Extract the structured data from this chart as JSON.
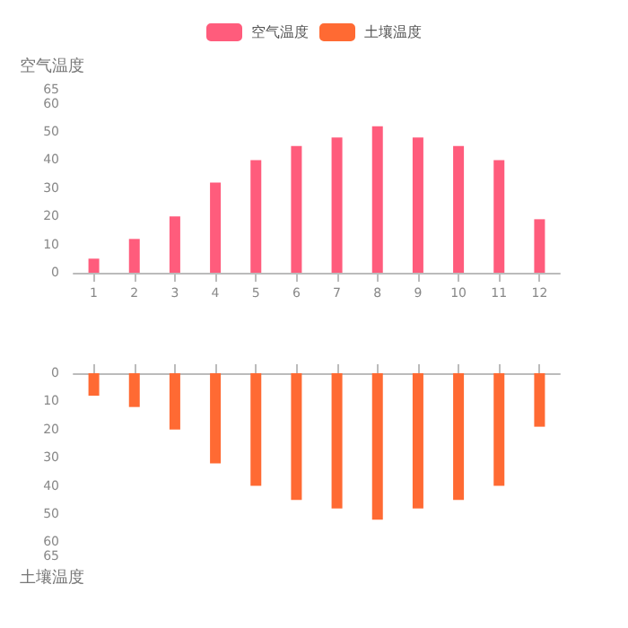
{
  "chart_data": [
    {
      "type": "bar",
      "ylabel": "空气温度",
      "x": [
        1,
        2,
        3,
        4,
        5,
        6,
        7,
        8,
        9,
        10,
        11,
        12
      ],
      "series": [
        {
          "name": "空气温度",
          "color": "#ff5c7c",
          "values": [
            5,
            12,
            20,
            32,
            40,
            45,
            48,
            52,
            48,
            45,
            40,
            19
          ]
        }
      ],
      "xlim": [
        0.5,
        12.5
      ],
      "xticks": [
        1,
        2,
        3,
        4,
        5,
        6,
        7,
        8,
        9,
        10,
        11,
        12
      ],
      "ylim": [
        0,
        65
      ],
      "yticks": [
        0,
        10,
        20,
        30,
        40,
        50,
        60,
        65
      ],
      "grid": false,
      "legend": "top"
    },
    {
      "type": "bar",
      "ylabel": "土壤温度",
      "x": [
        1,
        2,
        3,
        4,
        5,
        6,
        7,
        8,
        9,
        10,
        11,
        12
      ],
      "series": [
        {
          "name": "土壤温度",
          "color": "#ff6a33",
          "values": [
            8,
            12,
            20,
            32,
            40,
            45,
            48,
            52,
            48,
            45,
            40,
            19
          ]
        }
      ],
      "xlim": [
        0.5,
        12.5
      ],
      "xticks": [
        1,
        2,
        3,
        4,
        5,
        6,
        7,
        8,
        9,
        10,
        11,
        12
      ],
      "ylim": [
        65,
        0
      ],
      "yticks": [
        0,
        10,
        20,
        30,
        40,
        50,
        60,
        65
      ],
      "grid": false,
      "legend": "top",
      "tick_labels": "y"
    }
  ]
}
